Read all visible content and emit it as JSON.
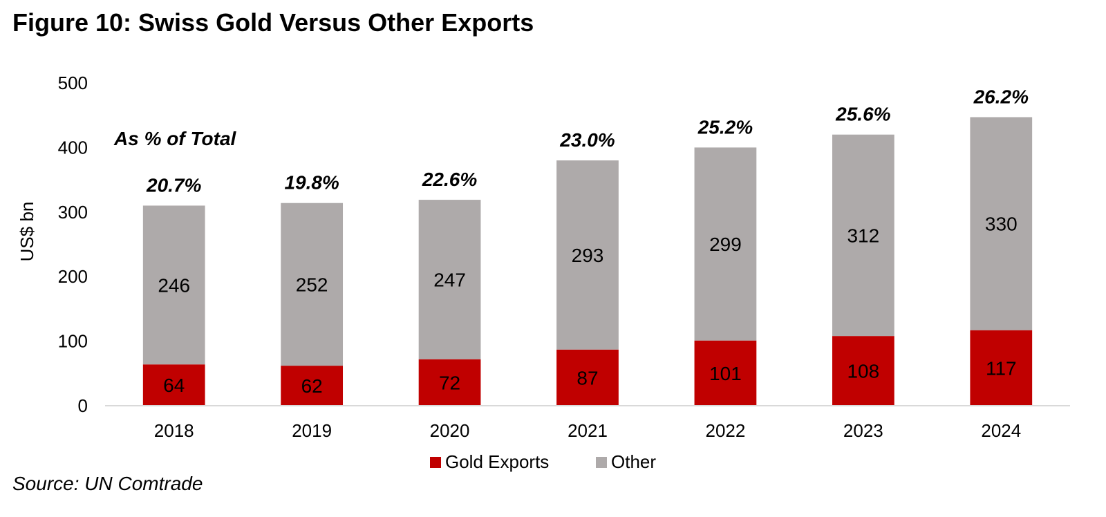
{
  "figure": {
    "title": "Figure 10: Swiss Gold Versus Other Exports",
    "source": "Source: UN Comtrade"
  },
  "chart_data": {
    "type": "bar",
    "stacked": true,
    "categories": [
      "2018",
      "2019",
      "2020",
      "2021",
      "2022",
      "2023",
      "2024"
    ],
    "series": [
      {
        "name": "Gold Exports",
        "color": "#c00000",
        "values": [
          64,
          62,
          72,
          87,
          101,
          108,
          117
        ]
      },
      {
        "name": "Other",
        "color": "#aeaaaa",
        "values": [
          246,
          252,
          247,
          293,
          299,
          312,
          330
        ]
      }
    ],
    "share_labels": [
      "20.7%",
      "19.8%",
      "22.6%",
      "23.0%",
      "25.2%",
      "25.6%",
      "26.2%"
    ],
    "annotation": "As % of Total",
    "ylabel": "US$ bn",
    "xlabel": "",
    "ylim": [
      0,
      500
    ],
    "yticks": [
      0,
      100,
      200,
      300,
      400,
      500
    ],
    "grid": false,
    "legend_position": "bottom-center"
  }
}
